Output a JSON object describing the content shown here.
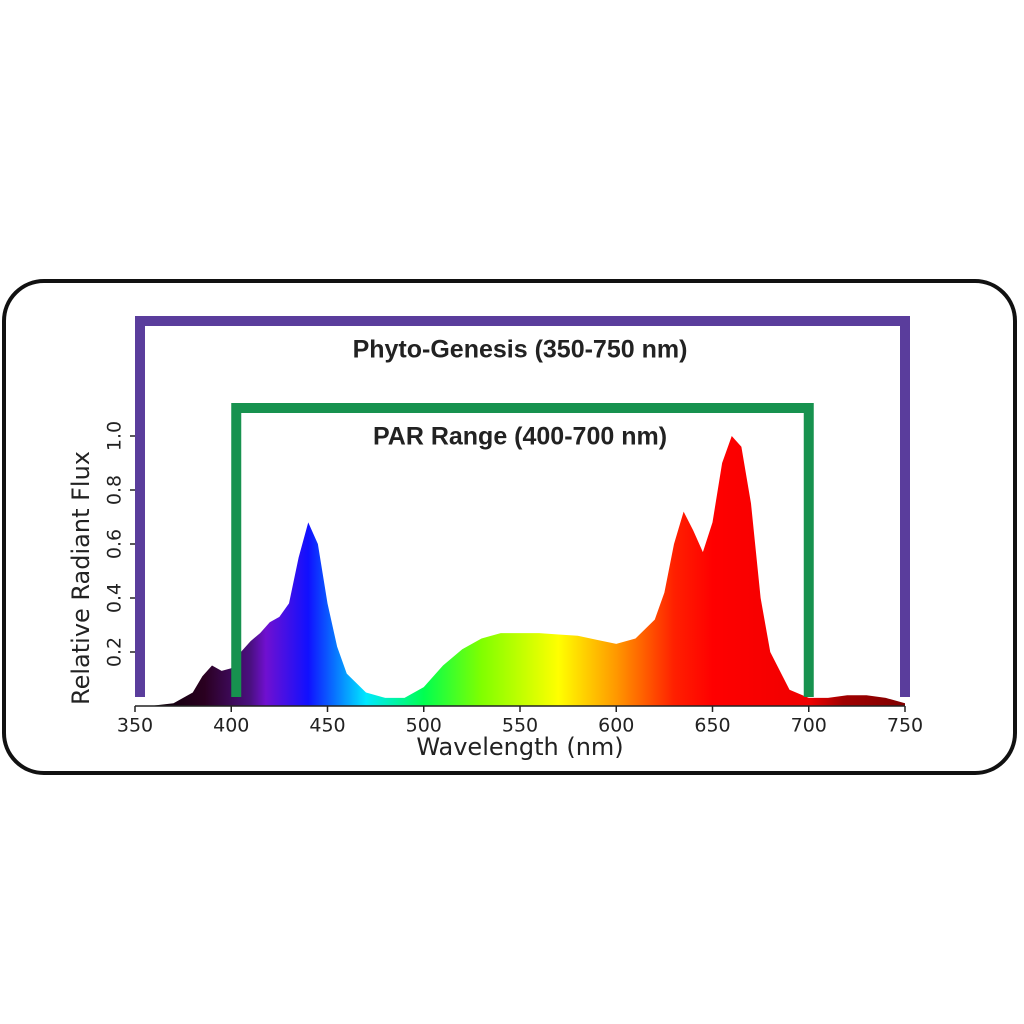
{
  "chart_data": {
    "type": "area",
    "xlabel": "Wavelength (nm)",
    "ylabel": "Relative Radiant Flux",
    "x": [
      350,
      360,
      370,
      380,
      385,
      390,
      395,
      400,
      405,
      410,
      415,
      420,
      425,
      430,
      435,
      440,
      445,
      450,
      455,
      460,
      470,
      480,
      490,
      500,
      510,
      520,
      530,
      540,
      550,
      560,
      570,
      580,
      590,
      600,
      610,
      620,
      625,
      630,
      635,
      640,
      645,
      650,
      655,
      660,
      665,
      670,
      675,
      680,
      690,
      700,
      710,
      720,
      730,
      740,
      750
    ],
    "values": [
      0,
      0.002,
      0.01,
      0.05,
      0.11,
      0.15,
      0.13,
      0.14,
      0.2,
      0.24,
      0.27,
      0.31,
      0.33,
      0.38,
      0.55,
      0.68,
      0.6,
      0.38,
      0.22,
      0.12,
      0.05,
      0.03,
      0.03,
      0.07,
      0.15,
      0.21,
      0.25,
      0.27,
      0.27,
      0.27,
      0.265,
      0.26,
      0.245,
      0.23,
      0.25,
      0.32,
      0.42,
      0.6,
      0.72,
      0.65,
      0.57,
      0.68,
      0.9,
      1.0,
      0.96,
      0.75,
      0.4,
      0.2,
      0.06,
      0.03,
      0.03,
      0.04,
      0.04,
      0.03,
      0.01
    ],
    "xlim": [
      350,
      750
    ],
    "ylim": [
      0,
      1.0
    ],
    "xticks": [
      350,
      400,
      450,
      500,
      550,
      600,
      650,
      700,
      750
    ],
    "yticks": [
      0.2,
      0.4,
      0.6,
      0.8,
      {
        "value": 1,
        "label": "1.0"
      }
    ],
    "label_color": "#ef5545",
    "ranges": [
      {
        "label": "Phyto-Genesis (350-750 nm)",
        "range": [
          350,
          750
        ],
        "color": "#5a3d9c"
      },
      {
        "label": "PAR Range (400-700 nm)",
        "range": [
          400,
          700
        ],
        "color": "#17924f"
      }
    ]
  }
}
